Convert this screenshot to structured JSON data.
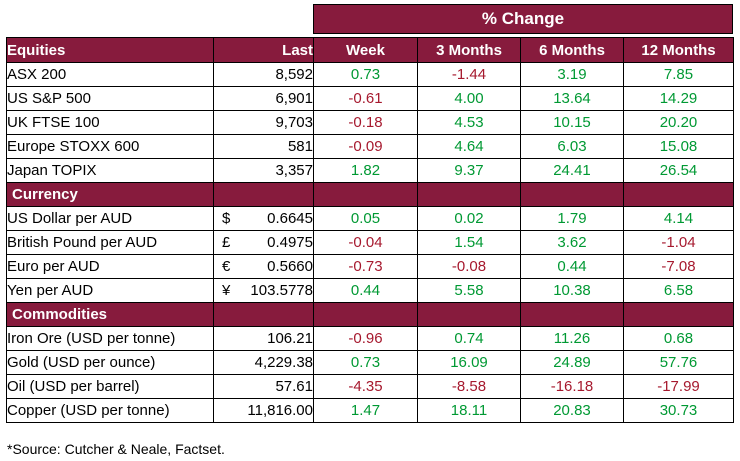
{
  "colors": {
    "maroon": "#871B3D",
    "positive": "#009933",
    "negative": "#A6192E",
    "border": "#000000"
  },
  "table": {
    "pct_change_label": "% Change",
    "header": {
      "col1": "Equities",
      "col2": "Last",
      "changes": [
        "Week",
        "3 Months",
        "6 Months",
        "12 Months"
      ]
    },
    "sections": [
      {
        "label": "",
        "rows": [
          {
            "name": "ASX 200",
            "last": "8,592",
            "changes": [
              "0.73",
              "-1.44",
              "3.19",
              "7.85"
            ]
          },
          {
            "name": "US S&P 500",
            "last": "6,901",
            "changes": [
              "-0.61",
              "4.00",
              "13.64",
              "14.29"
            ]
          },
          {
            "name": "UK FTSE 100",
            "last": "9,703",
            "changes": [
              "-0.18",
              "4.53",
              "10.15",
              "20.20"
            ]
          },
          {
            "name": "Europe STOXX 600",
            "last": "581",
            "changes": [
              "-0.09",
              "4.64",
              "6.03",
              "15.08"
            ]
          },
          {
            "name": "Japan TOPIX",
            "last": "3,357",
            "changes": [
              "1.82",
              "9.37",
              "24.41",
              "26.54"
            ]
          }
        ]
      },
      {
        "label": "Currency",
        "rows": [
          {
            "name": "US Dollar per AUD",
            "symbol": "$",
            "last": "0.6645",
            "changes": [
              "0.05",
              "0.02",
              "1.79",
              "4.14"
            ]
          },
          {
            "name": "British Pound per AUD",
            "symbol": "£",
            "last": "0.4975",
            "changes": [
              "-0.04",
              "1.54",
              "3.62",
              "-1.04"
            ]
          },
          {
            "name": "Euro per AUD",
            "symbol": "€",
            "last": "0.5660",
            "changes": [
              "-0.73",
              "-0.08",
              "0.44",
              "-7.08"
            ]
          },
          {
            "name": "Yen per AUD",
            "symbol": "¥",
            "last": "103.5778",
            "changes": [
              "0.44",
              "5.58",
              "10.38",
              "6.58"
            ]
          }
        ]
      },
      {
        "label": "Commodities",
        "rows": [
          {
            "name": "Iron Ore (USD per tonne)",
            "last": "106.21",
            "changes": [
              "-0.96",
              "0.74",
              "11.26",
              "0.68"
            ]
          },
          {
            "name": "Gold (USD per ounce)",
            "last": "4,229.38",
            "changes": [
              "0.73",
              "16.09",
              "24.89",
              "57.76"
            ]
          },
          {
            "name": "Oil (USD per barrel)",
            "last": "57.61",
            "changes": [
              "-4.35",
              "-8.58",
              "-16.18",
              "-17.99"
            ]
          },
          {
            "name": "Copper (USD per tonne)",
            "last": "11,816.00",
            "changes": [
              "1.47",
              "18.11",
              "20.83",
              "30.73"
            ]
          }
        ]
      }
    ]
  },
  "footer": {
    "source": "*Source: Cutcher & Neale, Factset."
  }
}
